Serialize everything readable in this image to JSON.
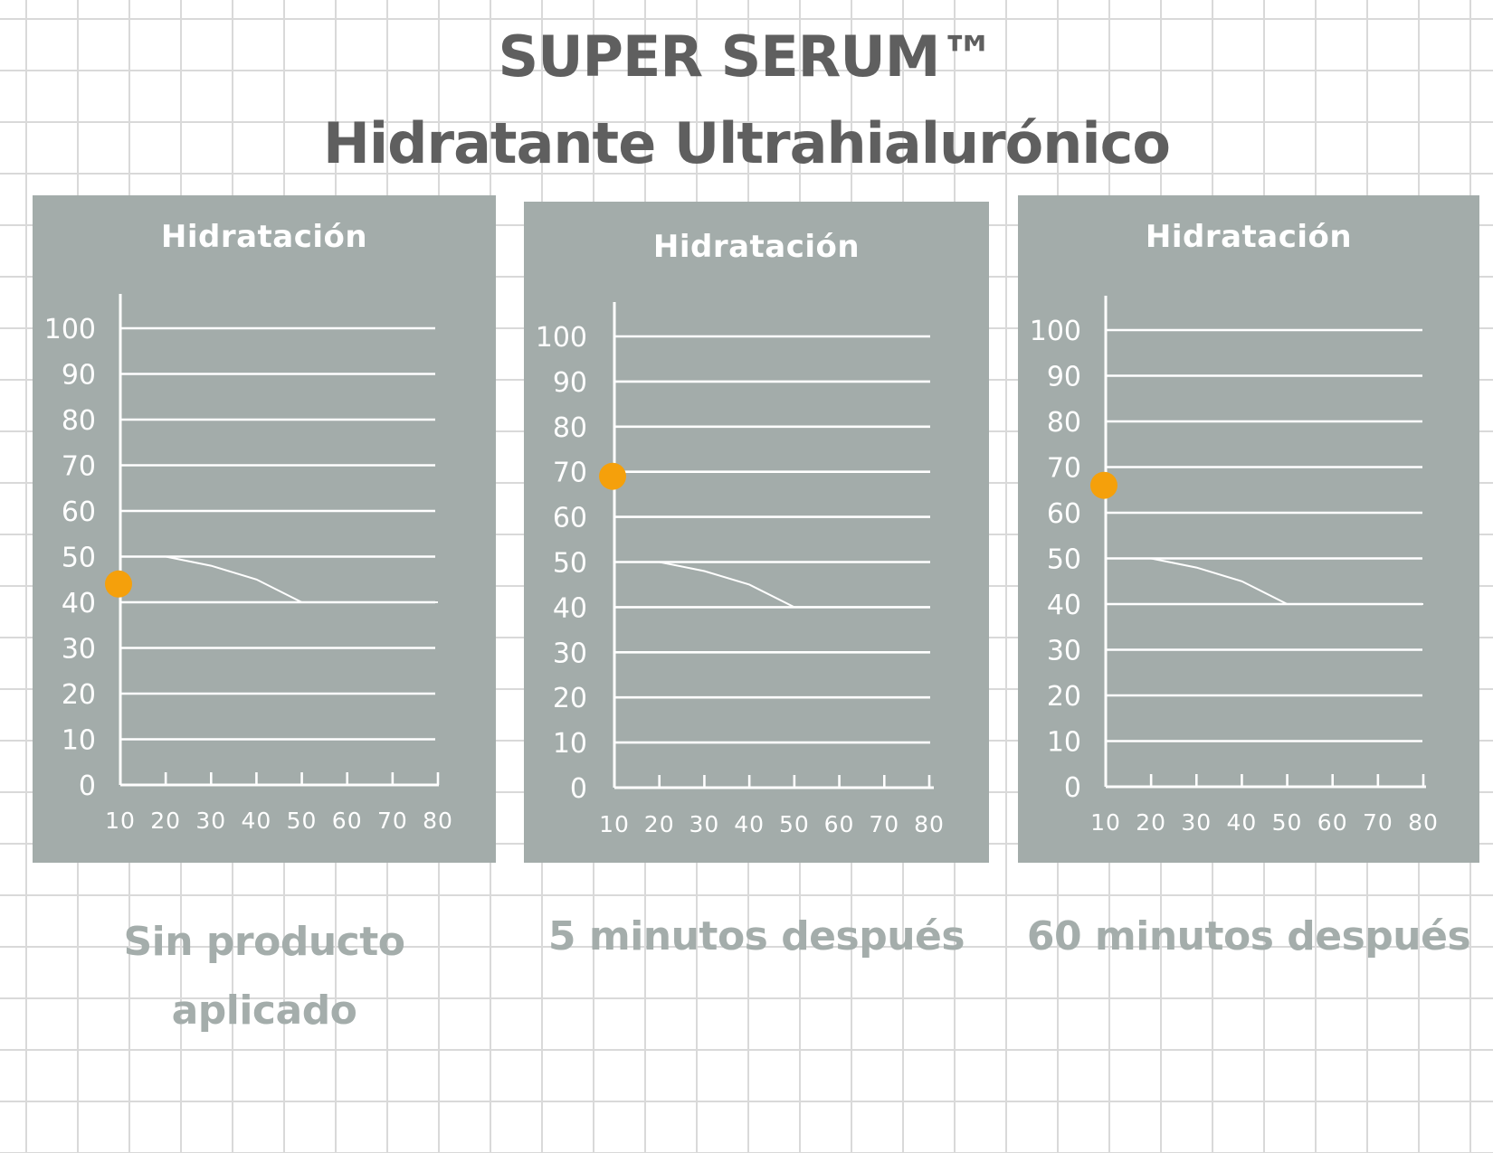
{
  "header": {
    "title_line1": "SUPER SERUM™",
    "title_line2": "Hidratante Ultrahialurónico"
  },
  "colors": {
    "panel_bg": "#a3acaa",
    "line": "#ffffff",
    "marker": "#f5a00b",
    "title_text": "#5f5f5f",
    "caption_text": "#a4adab"
  },
  "chart_data": [
    {
      "type": "line",
      "title": "Hidratación",
      "x_ticks": [
        10,
        20,
        30,
        40,
        50,
        60,
        70,
        80
      ],
      "y_ticks": [
        0,
        10,
        20,
        30,
        40,
        50,
        60,
        70,
        80,
        90,
        100
      ],
      "xlim": [
        10,
        80
      ],
      "ylim": [
        0,
        100
      ],
      "grid": true,
      "series": [
        {
          "x": [
            10,
            20,
            30,
            40,
            50,
            60,
            70,
            80
          ],
          "y": [
            50,
            50,
            48,
            45,
            40,
            40,
            40,
            40
          ]
        }
      ],
      "marker": {
        "x": 10,
        "y": 44,
        "color": "#f5a00b"
      },
      "caption": [
        "Sin producto",
        "aplicado"
      ]
    },
    {
      "type": "line",
      "title": "Hidratación",
      "x_ticks": [
        10,
        20,
        30,
        40,
        50,
        60,
        70,
        80
      ],
      "y_ticks": [
        0,
        10,
        20,
        30,
        40,
        50,
        60,
        70,
        80,
        90,
        100
      ],
      "xlim": [
        10,
        80
      ],
      "ylim": [
        0,
        100
      ],
      "grid": true,
      "series": [
        {
          "x": [
            10,
            20,
            30,
            40,
            50,
            60,
            70,
            80
          ],
          "y": [
            50,
            50,
            48,
            45,
            40,
            40,
            40,
            40
          ]
        }
      ],
      "marker": {
        "x": 10,
        "y": 69,
        "color": "#f5a00b"
      },
      "caption": [
        "5 minutos después"
      ]
    },
    {
      "type": "line",
      "title": "Hidratación",
      "x_ticks": [
        10,
        20,
        30,
        40,
        50,
        60,
        70,
        80
      ],
      "y_ticks": [
        0,
        10,
        20,
        30,
        40,
        50,
        60,
        70,
        80,
        90,
        100
      ],
      "xlim": [
        10,
        80
      ],
      "ylim": [
        0,
        100
      ],
      "grid": true,
      "series": [
        {
          "x": [
            10,
            20,
            30,
            40,
            50,
            60,
            70,
            80
          ],
          "y": [
            50,
            50,
            48,
            45,
            40,
            40,
            40,
            40
          ]
        }
      ],
      "marker": {
        "x": 10,
        "y": 66,
        "color": "#f5a00b"
      },
      "caption": [
        "60 minutos después"
      ]
    }
  ]
}
